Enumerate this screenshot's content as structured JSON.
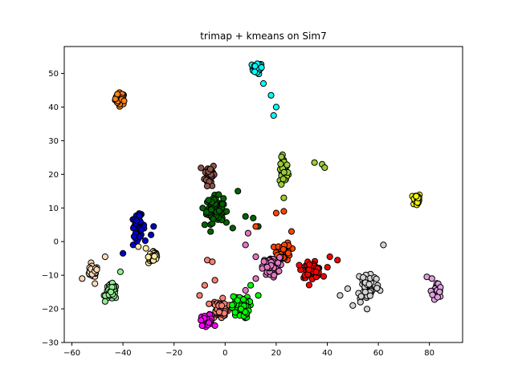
{
  "chart_data": {
    "type": "scatter",
    "title": "trimap + kmeans on Sim7",
    "xlabel": "",
    "ylabel": "",
    "xlim": [
      -63,
      93
    ],
    "ylim": [
      -30,
      58
    ],
    "xticks": [
      -60,
      -40,
      -20,
      0,
      20,
      40,
      60,
      80
    ],
    "yticks": [
      -30,
      -20,
      -10,
      0,
      10,
      20,
      30,
      40,
      50
    ],
    "tick_labels": {
      "x": [
        "−60",
        "−40",
        "−20",
        "0",
        "20",
        "40",
        "60",
        "80"
      ],
      "y": [
        "−30",
        "−20",
        "−10",
        "0",
        "10",
        "20",
        "30",
        "40",
        "50"
      ]
    },
    "grid": false,
    "marker_edge_color": "#000000",
    "clusters": [
      {
        "color": "#ff7f0e",
        "center": [
          -41,
          42.5
        ],
        "spread": [
          1.8,
          1.6
        ],
        "n": 40,
        "extra": []
      },
      {
        "color": "#00ffff",
        "center": [
          12.5,
          51.5
        ],
        "spread": [
          1.8,
          1.5
        ],
        "n": 30,
        "extra": [
          [
            18,
            43.5
          ],
          [
            20,
            40
          ],
          [
            19,
            37.5
          ],
          [
            15,
            47
          ]
        ]
      },
      {
        "color": "#9acd32",
        "center": [
          23,
          21
        ],
        "spread": [
          1.5,
          3.5
        ],
        "n": 45,
        "extra": [
          [
            23,
            13
          ],
          [
            22,
            17
          ],
          [
            38,
            23
          ],
          [
            39,
            22
          ],
          [
            35,
            23.5
          ]
        ]
      },
      {
        "color": "#ffff00",
        "center": [
          75,
          12.5
        ],
        "spread": [
          1.3,
          1.7
        ],
        "n": 25,
        "extra": []
      },
      {
        "color": "#8c564b",
        "center": [
          -6,
          20
        ],
        "spread": [
          1.8,
          3
        ],
        "n": 45,
        "extra": []
      },
      {
        "color": "#006400",
        "center": [
          -4,
          9.5
        ],
        "spread": [
          3,
          3.5
        ],
        "n": 80,
        "extra": [
          [
            5,
            15
          ],
          [
            8,
            7.5
          ],
          [
            11,
            7
          ],
          [
            13,
            4.5
          ],
          [
            3,
            4
          ],
          [
            -8,
            5
          ]
        ]
      },
      {
        "color": "#0000cd",
        "center": [
          -34,
          4.5
        ],
        "spread": [
          2.2,
          3
        ],
        "n": 60,
        "extra": [
          [
            -28,
            4.5
          ],
          [
            -40,
            -3.5
          ],
          [
            -36,
            -1
          ],
          [
            -29,
            2
          ]
        ]
      },
      {
        "color": "#ffeca0",
        "center": [
          -28,
          -4.5
        ],
        "spread": [
          1.8,
          1.8
        ],
        "n": 35,
        "extra": [
          [
            -31,
            -2
          ],
          [
            -34,
            -1.5
          ]
        ]
      },
      {
        "color": "#ffdab9",
        "center": [
          -52,
          -9
        ],
        "spread": [
          2,
          1.5
        ],
        "n": 35,
        "extra": [
          [
            -47,
            -4.5
          ],
          [
            -56,
            -11
          ],
          [
            -51,
            -12.5
          ]
        ]
      },
      {
        "color": "#90ee90",
        "center": [
          -44.5,
          -15
        ],
        "spread": [
          2,
          2
        ],
        "n": 55,
        "extra": [
          [
            -41,
            -9
          ]
        ]
      },
      {
        "color": "#ff4500",
        "center": [
          23,
          -3
        ],
        "spread": [
          2.5,
          2.5
        ],
        "n": 40,
        "extra": [
          [
            20,
            8.5
          ],
          [
            23,
            9
          ],
          [
            12,
            4.5
          ],
          [
            26,
            3
          ]
        ]
      },
      {
        "color": "#ff0000",
        "center": [
          34,
          -8.5
        ],
        "spread": [
          3.5,
          2
        ],
        "n": 60,
        "extra": [
          [
            41,
            -4.5
          ],
          [
            44,
            -5.5
          ],
          [
            29,
            -7
          ]
        ]
      },
      {
        "color": "#e377c2",
        "center": [
          18,
          -7.5
        ],
        "spread": [
          3,
          2.5
        ],
        "n": 60,
        "extra": [
          [
            9,
            2.5
          ],
          [
            8,
            -1
          ],
          [
            12,
            -4.5
          ],
          [
            12,
            -11
          ],
          [
            8,
            -14.5
          ]
        ]
      },
      {
        "color": "#d3d3d3",
        "center": [
          56,
          -13
        ],
        "spread": [
          4,
          4.5
        ],
        "n": 55,
        "extra": [
          [
            62,
            -1
          ],
          [
            45,
            -16
          ],
          [
            48,
            -14
          ],
          [
            53,
            -18
          ],
          [
            50,
            -19
          ]
        ]
      },
      {
        "color": "#dda0dd",
        "center": [
          83,
          -15
        ],
        "spread": [
          1.5,
          2.5
        ],
        "n": 30,
        "extra": [
          [
            79,
            -10.5
          ],
          [
            81,
            -11
          ]
        ]
      },
      {
        "color": "#fa8072",
        "center": [
          -2,
          -20
        ],
        "spread": [
          3,
          2.5
        ],
        "n": 60,
        "extra": [
          [
            -7,
            -5.5
          ],
          [
            -5,
            -6
          ],
          [
            -8,
            -13
          ],
          [
            -4,
            -11.5
          ],
          [
            -10,
            -16
          ]
        ]
      },
      {
        "color": "#00ff00",
        "center": [
          6,
          -19.5
        ],
        "spread": [
          3,
          3
        ],
        "n": 70,
        "extra": [
          [
            13,
            -16
          ],
          [
            10,
            -13
          ]
        ]
      },
      {
        "color": "#ff00ff",
        "center": [
          -7,
          -23.5
        ],
        "spread": [
          2,
          1.5
        ],
        "n": 45,
        "extra": [
          [
            -9,
            -25
          ],
          [
            -4,
            -25
          ]
        ]
      }
    ]
  }
}
